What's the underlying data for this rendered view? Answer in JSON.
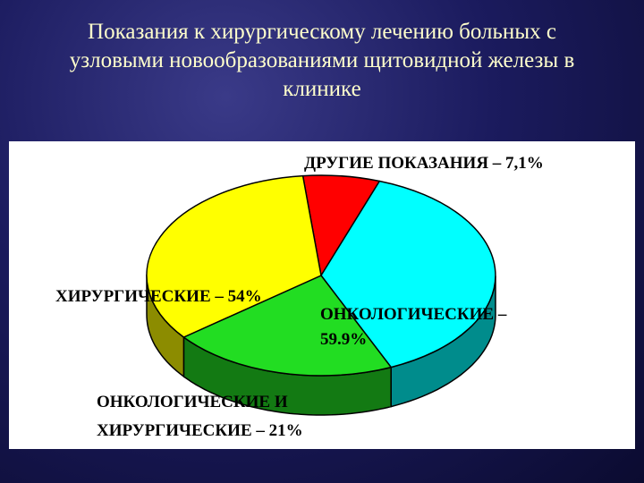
{
  "title_lines": [
    "Показания к хирургическому лечению больных с",
    "узловыми новообразованиями щитовидной железы в",
    "клинике"
  ],
  "chart_data": {
    "type": "pie",
    "title": "Показания к хирургическому лечению больных с узловыми новообразованиями щитовидной железы в клинике",
    "slices": [
      {
        "label": "ДРУГИЕ ПОКАЗАНИЯ – 7,1%",
        "value": 7.1,
        "color": "#ff0000"
      },
      {
        "label": "ОНКОЛОГИЧЕСКИЕ – 59.9%",
        "value": 59.9,
        "color": "#00ffff"
      },
      {
        "label": "ОНКОЛОГИЧЕСКИЕ И ХИРУРГИЧЕСКИЕ – 21%",
        "value": 21,
        "color": "#22dd22"
      },
      {
        "label": "ХИРУРГИЧЕСКИЕ – 54%",
        "value": 54,
        "color": "#ffff00"
      }
    ],
    "visible_sweep_percent": [
      7.1,
      38.0,
      21.0,
      33.9
    ]
  },
  "labels": {
    "other": "ДРУГИЕ ПОКАЗАНИЯ – 7,1%",
    "onco_line1": "ОНКОЛОГИЧЕСКИЕ –",
    "onco_line2": "59.9%",
    "surg": "ХИРУРГИЧЕСКИЕ – 54%",
    "both_line1": "ОНКОЛОГИЧЕСКИЕ И",
    "both_line2": "ХИРУРГИЧЕСКИЕ – 21%"
  }
}
